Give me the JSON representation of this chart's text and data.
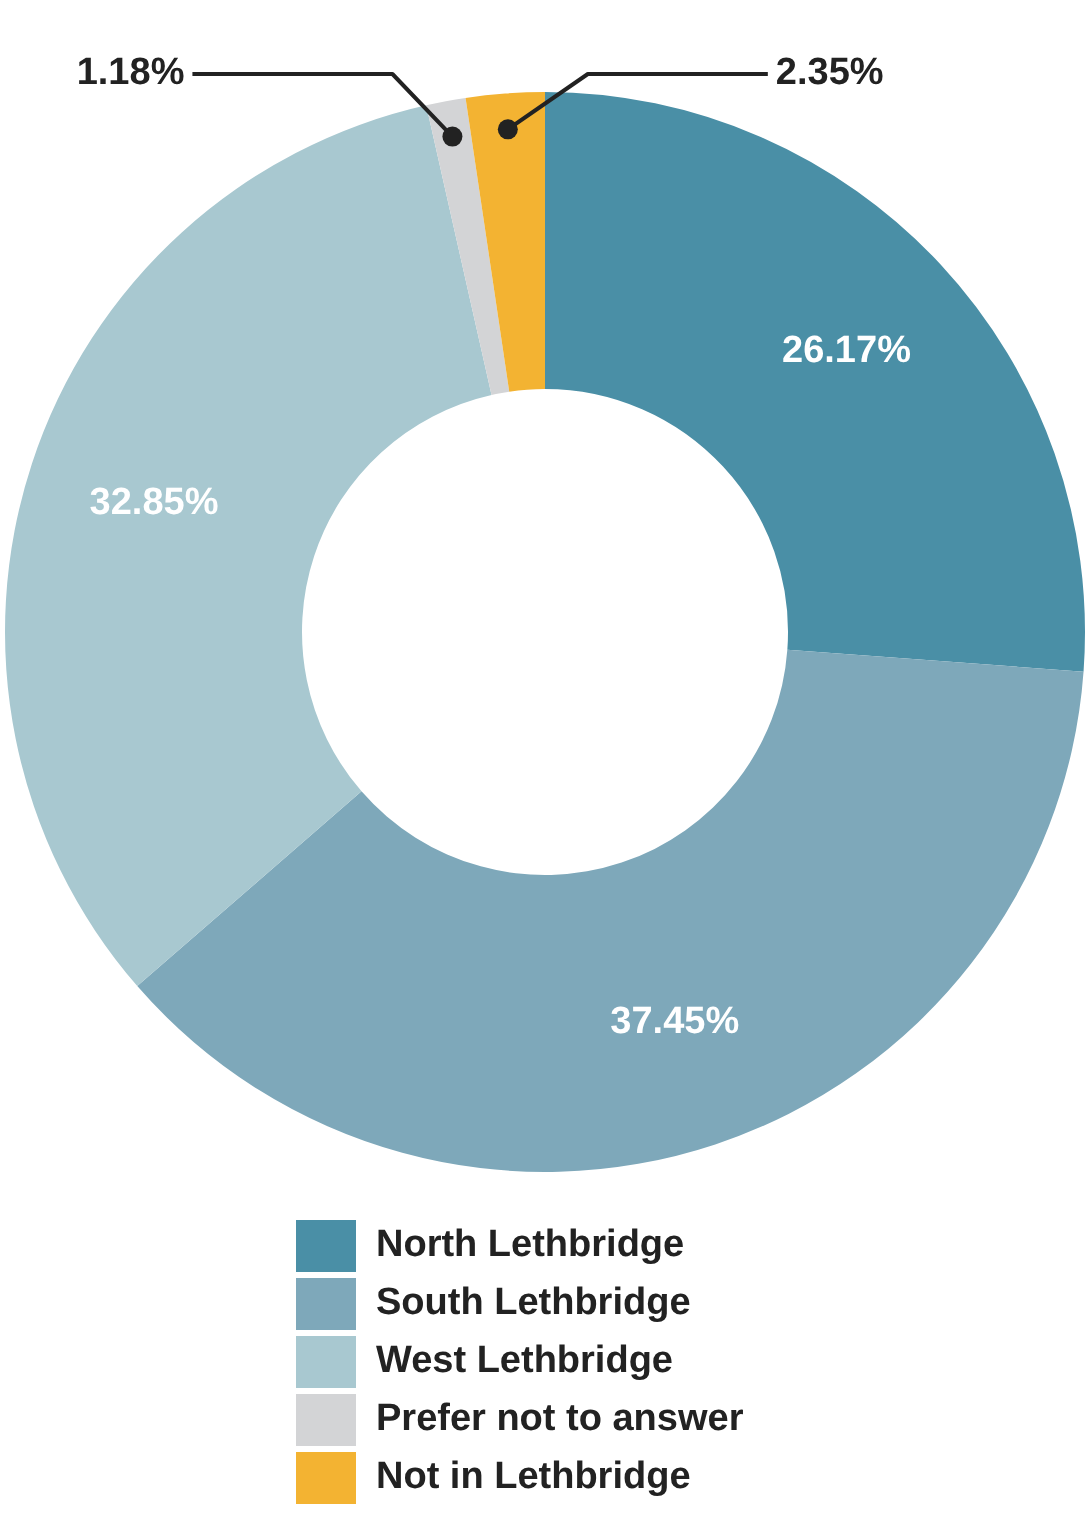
{
  "chart_data": {
    "type": "donut",
    "categories": [
      "North Lethbridge",
      "South Lethbridge",
      "West Lethbridge",
      "Prefer not to answer",
      "Not in Lethbridge"
    ],
    "values": [
      26.17,
      37.45,
      32.85,
      1.18,
      2.35
    ],
    "colors": [
      "#4a8fa6",
      "#7ea8ba",
      "#a8c8d0",
      "#d3d4d6",
      "#f3b332"
    ],
    "value_labels": [
      "26.17%",
      "37.45%",
      "32.85%",
      "1.18%",
      "2.35%"
    ],
    "legend": "bottom"
  }
}
